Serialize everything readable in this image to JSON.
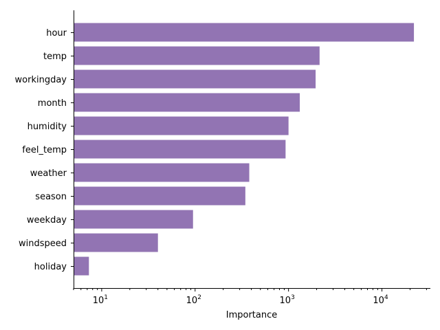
{
  "chart_data": {
    "type": "bar",
    "orientation": "horizontal",
    "title": "",
    "xlabel": "Importance",
    "ylabel": "",
    "x_scale": "log",
    "xlim": [
      5,
      33000
    ],
    "grid": false,
    "bar_color": "#9274b3",
    "categories": [
      "hour",
      "temp",
      "workingday",
      "month",
      "humidity",
      "feel_temp",
      "weather",
      "season",
      "weekday",
      "windspeed",
      "holiday"
    ],
    "values": [
      22000,
      2150,
      1950,
      1320,
      1000,
      930,
      380,
      345,
      95,
      40,
      7.3
    ],
    "x_ticks": [
      {
        "base": "10",
        "exp": "1",
        "value": 10
      },
      {
        "base": "10",
        "exp": "2",
        "value": 100
      },
      {
        "base": "10",
        "exp": "3",
        "value": 1000
      },
      {
        "base": "10",
        "exp": "4",
        "value": 10000
      }
    ]
  }
}
